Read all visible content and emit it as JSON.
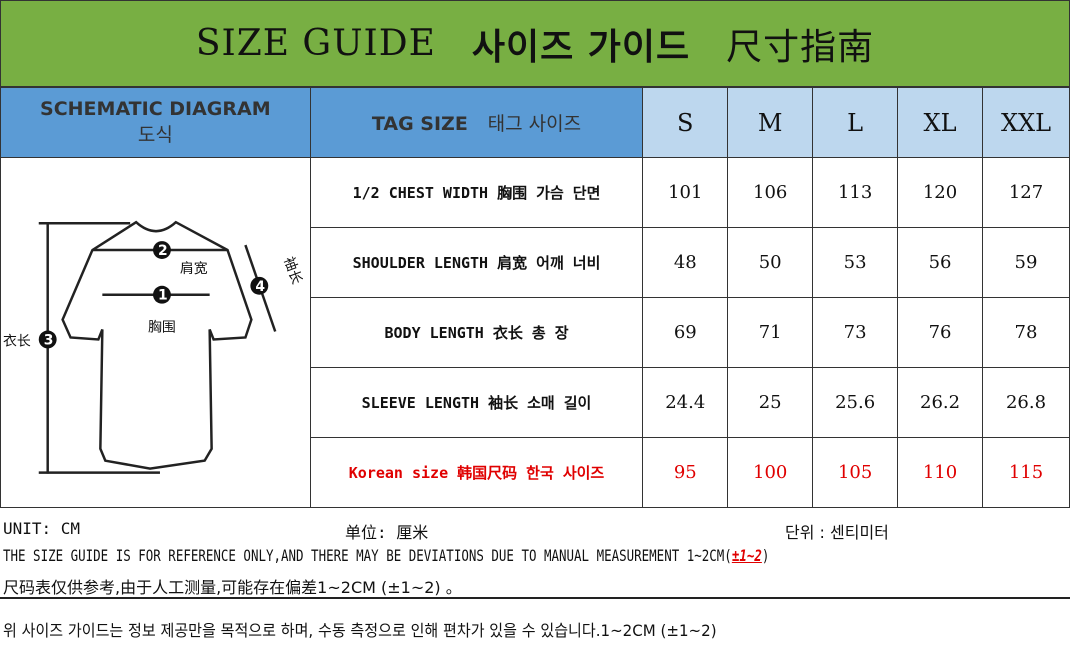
{
  "title": {
    "en": "SIZE GUIDE",
    "ko": "사이즈 가이드",
    "zh": "尺寸指南"
  },
  "header": {
    "diagram_en": "SCHEMATIC DIAGRAM",
    "diagram_ko": "도식",
    "tag_en": "TAG SIZE",
    "tag_ko": "태그 사이즈",
    "sizes": [
      "S",
      "M",
      "L",
      "XL",
      "XXL"
    ]
  },
  "diagram": {
    "shoulder": "肩宽",
    "chest": "胸围",
    "length": "衣长",
    "sleeve": "袖长",
    "n1": "1",
    "n2": "2",
    "n3": "3",
    "n4": "4"
  },
  "rows": [
    {
      "label": "1/2 CHEST WIDTH 胸围 가슴 단면",
      "values": [
        "101",
        "106",
        "113",
        "120",
        "127"
      ]
    },
    {
      "label": "SHOULDER LENGTH 肩宽 어깨 너비",
      "values": [
        "48",
        "50",
        "53",
        "56",
        "59"
      ]
    },
    {
      "label": "BODY LENGTH 衣长 총 장",
      "values": [
        "69",
        "71",
        "73",
        "76",
        "78"
      ]
    },
    {
      "label": "SLEEVE LENGTH 袖长 소매 길이",
      "values": [
        "24.4",
        "25",
        "25.6",
        "26.2",
        "26.8"
      ]
    },
    {
      "label": "Korean size 韩国尺码 한국 사이즈",
      "values": [
        "95",
        "100",
        "105",
        "110",
        "115"
      ],
      "highlight": "#e00000"
    }
  ],
  "footer": {
    "unit_en": "UNIT: CM",
    "unit_zh": "单位: 厘米",
    "unit_ko": "단위 : 센티미터",
    "note_en": "THE SIZE GUIDE IS FOR REFERENCE ONLY,AND THERE MAY BE DEVIATIONS DUE TO MANUAL MEASUREMENT 1~2CM(",
    "note_en_red": "±1~2",
    "note_en_end": ")",
    "note_zh": "尺码表仅供参考,由于人工测量,可能存在偏差1~2CM (±1~2) 。",
    "note_ko": "위 사이즈 가이드는 정보 제공만을 목적으로 하며, 수동 측정으로 인해 편차가 있을 수 있습니다.1~2CM (±1~2)"
  },
  "colors": {
    "title_bg": "#78af43",
    "header_bg": "#5b9bd5",
    "size_bg": "#bdd7ee",
    "highlight": "#e00000"
  }
}
